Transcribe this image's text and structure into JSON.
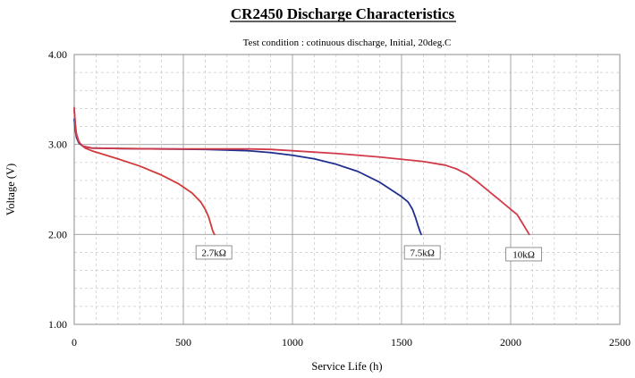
{
  "chart_data": {
    "type": "line",
    "title": "CR2450 Discharge Characteristics",
    "subtitle": "Test condition : cotinuous discharge, Initial, 20deg.C",
    "xlabel": "Service Life (h)",
    "ylabel": "Voltage (V)",
    "xlim": [
      0,
      2500
    ],
    "ylim": [
      1.0,
      4.0
    ],
    "x_ticks": [
      "0",
      "500",
      "1000",
      "1500",
      "2000",
      "2500"
    ],
    "y_ticks": [
      "1.00",
      "2.00",
      "3.00",
      "4.00"
    ],
    "grid": true,
    "series": [
      {
        "name": "2.7kΩ",
        "color": "#d23a3a",
        "x": [
          0,
          5,
          10,
          20,
          30,
          50,
          80,
          120,
          200,
          300,
          400,
          480,
          540,
          580,
          600,
          615,
          625,
          632,
          638,
          643
        ],
        "y": [
          3.38,
          3.22,
          3.12,
          3.04,
          3.0,
          2.96,
          2.93,
          2.9,
          2.84,
          2.76,
          2.66,
          2.56,
          2.46,
          2.36,
          2.28,
          2.2,
          2.12,
          2.06,
          2.02,
          2.0
        ]
      },
      {
        "name": "7.5kΩ",
        "color": "#1f2f8f",
        "x": [
          0,
          5,
          10,
          20,
          40,
          80,
          200,
          400,
          600,
          800,
          900,
          1000,
          1100,
          1200,
          1300,
          1400,
          1450,
          1500,
          1530,
          1550,
          1565,
          1575,
          1585,
          1590
        ],
        "y": [
          3.28,
          3.16,
          3.08,
          3.02,
          2.98,
          2.96,
          2.955,
          2.95,
          2.945,
          2.93,
          2.91,
          2.88,
          2.84,
          2.78,
          2.7,
          2.58,
          2.5,
          2.42,
          2.36,
          2.28,
          2.18,
          2.1,
          2.03,
          2.0
        ]
      },
      {
        "name": "10kΩ",
        "color": "#d23a4a",
        "x": [
          0,
          5,
          10,
          20,
          40,
          80,
          200,
          400,
          600,
          800,
          900,
          1000,
          1200,
          1400,
          1600,
          1700,
          1750,
          1800,
          1850,
          1900,
          1950,
          2000,
          2030,
          2050,
          2070,
          2085
        ],
        "y": [
          3.41,
          3.2,
          3.1,
          3.03,
          2.98,
          2.96,
          2.955,
          2.95,
          2.95,
          2.95,
          2.945,
          2.93,
          2.9,
          2.86,
          2.81,
          2.77,
          2.73,
          2.67,
          2.58,
          2.48,
          2.38,
          2.28,
          2.22,
          2.14,
          2.06,
          2.0
        ]
      }
    ],
    "annotations": [
      {
        "text": "2.7kΩ",
        "x": 640,
        "y": 1.8
      },
      {
        "text": "7.5kΩ",
        "x": 1595,
        "y": 1.8
      },
      {
        "text": "10kΩ",
        "x": 2060,
        "y": 1.78
      }
    ]
  }
}
